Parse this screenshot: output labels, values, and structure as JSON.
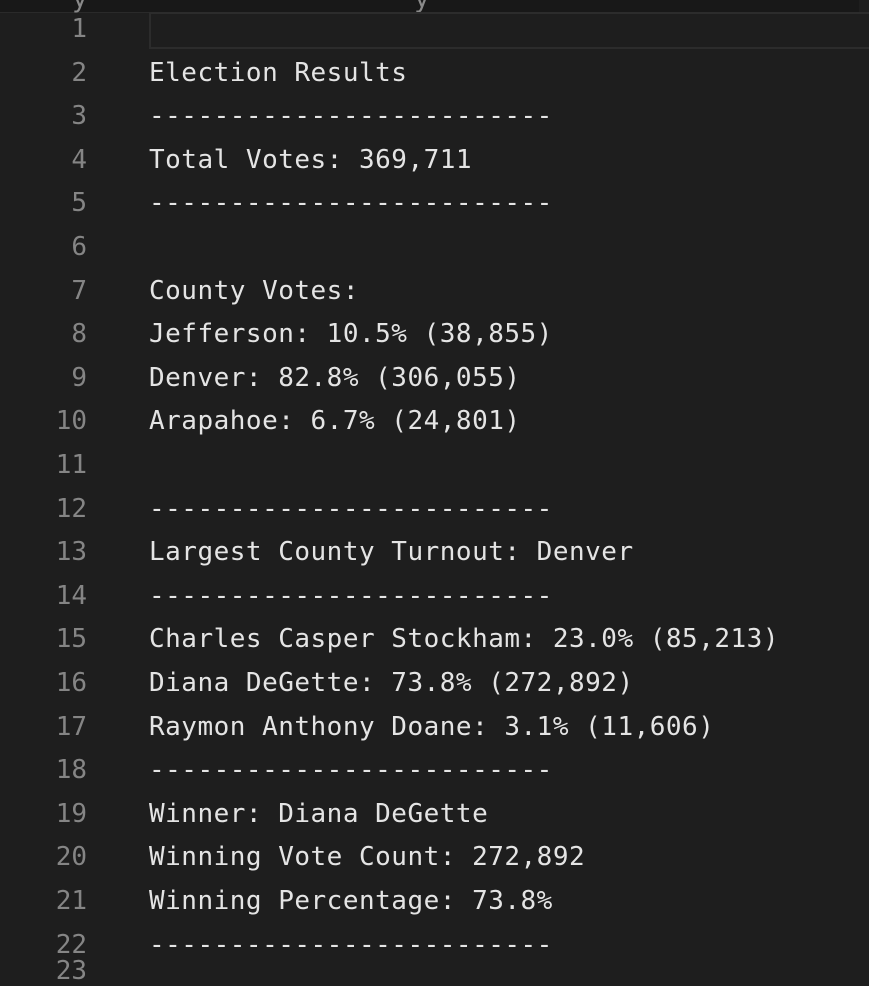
{
  "top_strip": {
    "fragments": [
      "y",
      "_",
      "y"
    ]
  },
  "editor": {
    "current_line": 1,
    "lines": [
      {
        "number": "1",
        "text": ""
      },
      {
        "number": "2",
        "text": "Election Results"
      },
      {
        "number": "3",
        "text": "-------------------------"
      },
      {
        "number": "4",
        "text": "Total Votes: 369,711"
      },
      {
        "number": "5",
        "text": "-------------------------"
      },
      {
        "number": "6",
        "text": ""
      },
      {
        "number": "7",
        "text": "County Votes:"
      },
      {
        "number": "8",
        "text": "Jefferson: 10.5% (38,855)"
      },
      {
        "number": "9",
        "text": "Denver: 82.8% (306,055)"
      },
      {
        "number": "10",
        "text": "Arapahoe: 6.7% (24,801)"
      },
      {
        "number": "11",
        "text": ""
      },
      {
        "number": "12",
        "text": "-------------------------"
      },
      {
        "number": "13",
        "text": "Largest County Turnout: Denver"
      },
      {
        "number": "14",
        "text": "-------------------------"
      },
      {
        "number": "15",
        "text": "Charles Casper Stockham: 23.0% (85,213)"
      },
      {
        "number": "16",
        "text": "Diana DeGette: 73.8% (272,892)"
      },
      {
        "number": "17",
        "text": "Raymon Anthony Doane: 3.1% (11,606)"
      },
      {
        "number": "18",
        "text": "-------------------------"
      },
      {
        "number": "19",
        "text": "Winner: Diana DeGette"
      },
      {
        "number": "20",
        "text": "Winning Vote Count: 272,892"
      },
      {
        "number": "21",
        "text": "Winning Percentage: 73.8%"
      },
      {
        "number": "22",
        "text": "-------------------------"
      }
    ],
    "partial_line_number": "23"
  }
}
